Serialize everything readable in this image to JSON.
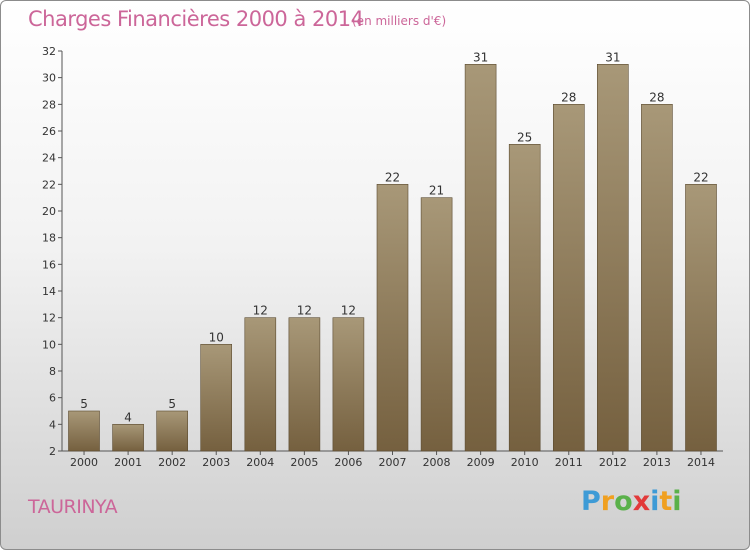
{
  "chart_data": {
    "type": "bar",
    "title": "Charges Financières 2000 à 2014",
    "subtitle": "(en milliers d'€)",
    "categories": [
      "2000",
      "2001",
      "2002",
      "2003",
      "2004",
      "2005",
      "2006",
      "2007",
      "2008",
      "2009",
      "2010",
      "2011",
      "2012",
      "2013",
      "2014"
    ],
    "values": [
      5,
      4,
      5,
      10,
      12,
      12,
      12,
      22,
      21,
      31,
      25,
      28,
      31,
      28,
      22
    ],
    "ylim": [
      2,
      32
    ],
    "yticks": [
      2,
      4,
      6,
      8,
      10,
      12,
      14,
      16,
      18,
      20,
      22,
      24,
      26,
      28,
      30,
      32
    ],
    "grid": false,
    "bar_color_top": "#a89878",
    "bar_color_bottom": "#75603f"
  },
  "place_name": "TAURINYA",
  "logo": {
    "letters": [
      "P",
      "r",
      "o",
      "x",
      "i",
      "t",
      "i"
    ],
    "colors": [
      "#3e9bd6",
      "#f0a020",
      "#5ab14a",
      "#e23a3a",
      "#3e9bd6",
      "#f0a020",
      "#5ab14a"
    ]
  }
}
